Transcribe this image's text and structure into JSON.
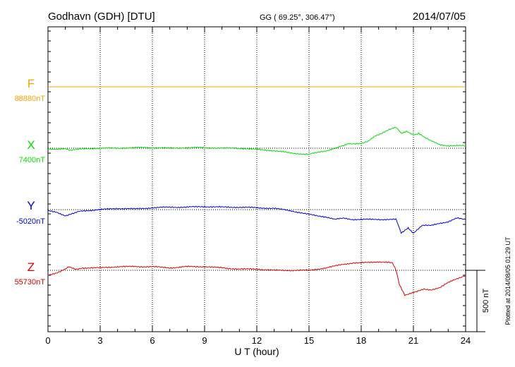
{
  "header": {
    "title": "Godhavn (GDH)  [DTU]",
    "coords": "GG ( 69.25°, 306.47°)",
    "date": "2014/07/05"
  },
  "footer": {
    "plotted": "Plotted at 2014/08/05 01:29 UT"
  },
  "chart_data": {
    "type": "line",
    "xlabel": "U T (hour)",
    "xlim": [
      0,
      24
    ],
    "x_ticks": [
      "0",
      "3",
      "6",
      "9",
      "12",
      "15",
      "18",
      "21",
      "24"
    ],
    "scale_bar": {
      "label": "500 nT",
      "value_nT": 500
    },
    "grid": "dotted vertical lines every 3 hours",
    "series": [
      {
        "name": "F",
        "baseline_label": "88880nT",
        "baseline_nT": 88880,
        "color": "#f5a300",
        "x": [
          0,
          24
        ],
        "offset": [
          0,
          0
        ]
      },
      {
        "name": "X",
        "baseline_label": "7400nT",
        "baseline_nT": 7400,
        "color": "#00dd00",
        "x": [
          0,
          0.5,
          1.0,
          1.3,
          1.6,
          2,
          3,
          4,
          5,
          6,
          7,
          8,
          9,
          10,
          11,
          12,
          13,
          14,
          15,
          16,
          16.5,
          17,
          17.3,
          17.6,
          18,
          18.4,
          18.8,
          19.2,
          19.6,
          20,
          20.3,
          20.6,
          21,
          21.3,
          21.6,
          22,
          22.5,
          23,
          23.5,
          24
        ],
        "offset": [
          -10,
          -10,
          0,
          -20,
          -10,
          -5,
          0,
          0,
          5,
          5,
          0,
          5,
          5,
          0,
          0,
          -10,
          -20,
          -40,
          -50,
          -20,
          0,
          20,
          40,
          35,
          40,
          60,
          100,
          120,
          150,
          170,
          120,
          140,
          110,
          120,
          90,
          60,
          30,
          20,
          20,
          20
        ]
      },
      {
        "name": "Y",
        "baseline_label": "-5020nT",
        "baseline_nT": -5020,
        "color": "#0000dd",
        "x": [
          0,
          0.5,
          1.0,
          1.4,
          2,
          3,
          4,
          5,
          6,
          7,
          8,
          9,
          10,
          11,
          12,
          13,
          14,
          15,
          16,
          16.5,
          17,
          17.5,
          18,
          19,
          19.5,
          20,
          20.3,
          20.7,
          21,
          21.5,
          22,
          22.5,
          23,
          23.5,
          24
        ],
        "offset": [
          -10,
          -20,
          -50,
          -30,
          -10,
          0,
          10,
          5,
          15,
          20,
          20,
          25,
          20,
          20,
          15,
          10,
          -10,
          -40,
          -60,
          -80,
          -70,
          -80,
          -80,
          -80,
          -80,
          -80,
          -190,
          -150,
          -190,
          -130,
          -130,
          -110,
          -100,
          -70,
          -80
        ]
      },
      {
        "name": "Z",
        "baseline_label": "55730nT",
        "baseline_nT": 55730,
        "color": "#dd0000",
        "x": [
          0,
          0.5,
          1.0,
          1.2,
          1.6,
          2,
          3,
          4,
          5,
          6,
          7,
          8,
          9,
          10,
          11,
          12,
          13,
          14,
          15,
          16,
          17,
          17.5,
          18,
          19,
          19.8,
          20,
          20.2,
          20.5,
          20.8,
          21.2,
          21.6,
          22,
          22.5,
          23,
          23.5,
          24
        ],
        "offset": [
          -40,
          -20,
          10,
          30,
          10,
          20,
          20,
          30,
          30,
          30,
          20,
          30,
          30,
          20,
          10,
          10,
          0,
          0,
          0,
          20,
          50,
          60,
          60,
          70,
          60,
          0,
          -120,
          -200,
          -190,
          -170,
          -150,
          -160,
          -140,
          -100,
          -70,
          -40
        ]
      }
    ]
  }
}
